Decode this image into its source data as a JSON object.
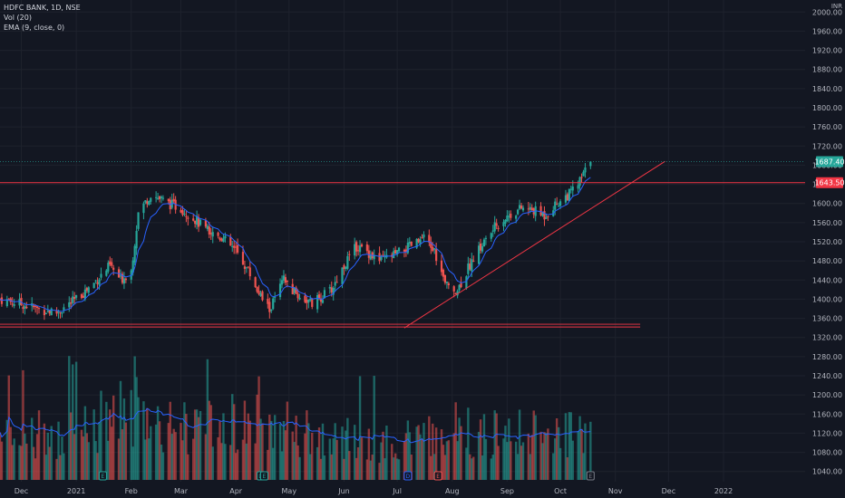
{
  "legend": {
    "symbol": "HDFC BANK, 1D, NSE",
    "vol": "Vol (20)",
    "ema": "EMA (9, close, 0)"
  },
  "corner_label": "INR",
  "colors": {
    "background": "#131722",
    "grid": "#1e222d",
    "up": "#26a69a",
    "down": "#ef5350",
    "ema": "#2962ff",
    "line_red": "#f23645",
    "last_price_line": "#26a69a"
  },
  "chart_data": {
    "type": "candlestick",
    "title": "",
    "y_axis": {
      "unit": "INR",
      "ticks": [
        1040,
        1080,
        1120,
        1160,
        1200,
        1240,
        1280,
        1320,
        1360,
        1400,
        1440,
        1480,
        1520,
        1560,
        1600,
        1640,
        1680,
        1720,
        1760,
        1800,
        1840,
        1880,
        1920,
        1960,
        2000
      ],
      "tick_labels": [
        "1040.00",
        "1080.00",
        "1120.00",
        "1160.00",
        "1200.00",
        "1240.00",
        "1280.00",
        "1320.00",
        "1360.00",
        "1400.00",
        "1440.00",
        "1480.00",
        "1520.00",
        "1560.00",
        "1600.00",
        "1640.00",
        "1680.00",
        "1720.00",
        "1760.00",
        "1800.00",
        "1840.00",
        "1880.00",
        "1920.00",
        "1960.00",
        "2000.00"
      ],
      "ylim": [
        1030,
        2010
      ]
    },
    "x_axis": {
      "labels": [
        "Dec",
        "2021",
        "Feb",
        "Mar",
        "Apr",
        "May",
        "Jun",
        "Jul",
        "Aug",
        "Sep",
        "Oct",
        "Nov",
        "Dec",
        "2022"
      ],
      "dates": [
        "2020-12-01",
        "2021-01-01",
        "2021-02-01",
        "2021-03-01",
        "2021-04-01",
        "2021-05-01",
        "2021-06-01",
        "2021-07-01",
        "2021-08-01",
        "2021-09-01",
        "2021-10-01",
        "2021-11-01",
        "2021-12-01",
        "2022-01-01"
      ],
      "xlim": [
        "2020-11-19",
        "2022-02-16"
      ]
    },
    "price_tags": [
      {
        "value": "1687.40",
        "price": 1687.4,
        "color": "#26a69a"
      },
      {
        "value": "1643.50",
        "price": 1643.5,
        "color": "#f23645"
      }
    ],
    "annotations": {
      "resistance_line": 1643.5,
      "support_line": 1342,
      "trendline": {
        "start": [
          "2021-07-05",
          1340
        ],
        "end": [
          "2021-11-29",
          1688
        ]
      }
    },
    "close_path": [
      [
        "2020-11-19",
        1400
      ],
      [
        "2020-12-01",
        1390
      ],
      [
        "2020-12-10",
        1380
      ],
      [
        "2020-12-21",
        1372
      ],
      [
        "2021-01-01",
        1400
      ],
      [
        "2021-01-10",
        1430
      ],
      [
        "2021-01-20",
        1470
      ],
      [
        "2021-01-26",
        1440
      ],
      [
        "2021-02-01",
        1460
      ],
      [
        "2021-02-05",
        1580
      ],
      [
        "2021-02-12",
        1620
      ],
      [
        "2021-02-22",
        1600
      ],
      [
        "2021-03-01",
        1590
      ],
      [
        "2021-03-08",
        1570
      ],
      [
        "2021-03-15",
        1545
      ],
      [
        "2021-03-24",
        1530
      ],
      [
        "2021-04-01",
        1500
      ],
      [
        "2021-04-08",
        1460
      ],
      [
        "2021-04-15",
        1405
      ],
      [
        "2021-04-20",
        1378
      ],
      [
        "2021-04-28",
        1440
      ],
      [
        "2021-05-05",
        1410
      ],
      [
        "2021-05-14",
        1390
      ],
      [
        "2021-05-25",
        1420
      ],
      [
        "2021-06-01",
        1470
      ],
      [
        "2021-06-08",
        1510
      ],
      [
        "2021-06-14",
        1500
      ],
      [
        "2021-06-21",
        1480
      ],
      [
        "2021-07-01",
        1495
      ],
      [
        "2021-07-08",
        1510
      ],
      [
        "2021-07-16",
        1525
      ],
      [
        "2021-07-22",
        1500
      ],
      [
        "2021-07-28",
        1430
      ],
      [
        "2021-08-04",
        1420
      ],
      [
        "2021-08-12",
        1480
      ],
      [
        "2021-08-19",
        1520
      ],
      [
        "2021-08-26",
        1555
      ],
      [
        "2021-09-02",
        1575
      ],
      [
        "2021-09-09",
        1590
      ],
      [
        "2021-09-16",
        1585
      ],
      [
        "2021-09-22",
        1575
      ],
      [
        "2021-09-29",
        1600
      ],
      [
        "2021-10-06",
        1620
      ],
      [
        "2021-10-11",
        1640
      ],
      [
        "2021-10-18",
        1687.4
      ]
    ],
    "volume_path": [
      [
        "2020-11-19",
        0.5
      ],
      [
        "2021-01-01",
        0.45
      ],
      [
        "2021-02-01",
        0.75
      ],
      [
        "2021-03-01",
        0.55
      ],
      [
        "2021-04-01",
        0.6
      ],
      [
        "2021-05-01",
        0.5
      ],
      [
        "2021-06-01",
        0.4
      ],
      [
        "2021-07-01",
        0.35
      ],
      [
        "2021-08-01",
        0.5
      ],
      [
        "2021-09-01",
        0.45
      ],
      [
        "2021-10-01",
        0.45
      ],
      [
        "2021-10-18",
        0.42
      ]
    ],
    "events": [
      {
        "label": "E",
        "date": "2021-01-16",
        "color": "#26a69a"
      },
      {
        "label": "D",
        "date": "2021-04-15",
        "color": "#26a69a"
      },
      {
        "label": "E",
        "date": "2021-04-17",
        "color": "#26a69a"
      },
      {
        "label": "D",
        "date": "2021-07-07",
        "color": "#2962ff"
      },
      {
        "label": "E",
        "date": "2021-07-24",
        "color": "#ef5350"
      },
      {
        "label": "E",
        "date": "2021-10-18",
        "color": "#787b86"
      }
    ]
  }
}
